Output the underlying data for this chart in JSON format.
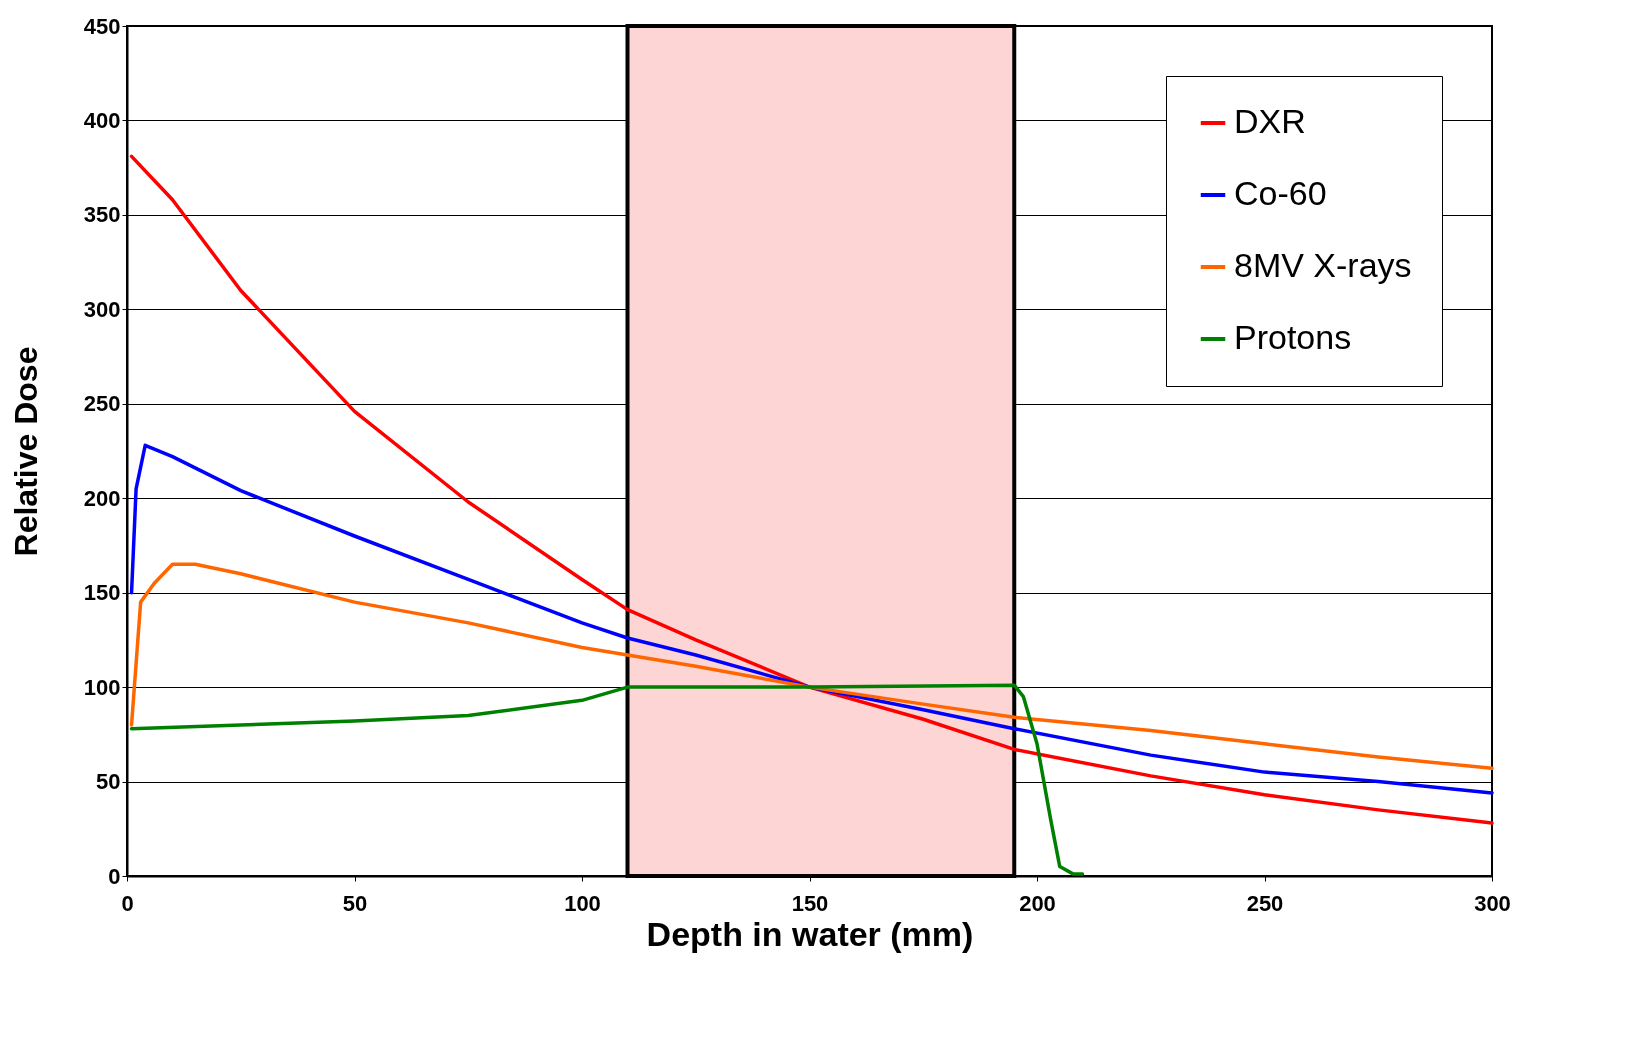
{
  "chart_data": {
    "type": "line",
    "xlabel": "Depth in water (mm)",
    "ylabel": "Relative Dose",
    "xlim": [
      0,
      300
    ],
    "xticks": [
      0,
      50,
      100,
      150,
      200,
      250,
      300
    ],
    "ylim": [
      0,
      450
    ],
    "yticks": [
      0,
      50,
      100,
      150,
      200,
      250,
      300,
      350,
      400,
      450
    ],
    "grid": "y",
    "legend": "top right",
    "line_style": "solid",
    "marker": "none",
    "bands": [
      {
        "axis": "x",
        "from": 110,
        "to": 195,
        "color": "#fdd5d5"
      }
    ],
    "series": [
      {
        "name": "DXR",
        "color": "#ff0000",
        "x": [
          1,
          10,
          25,
          50,
          75,
          100,
          110,
          125,
          150,
          175,
          195,
          225,
          250,
          275,
          300
        ],
        "values": [
          381,
          358,
          310,
          246,
          198,
          157,
          141,
          125,
          100,
          83,
          67,
          53,
          43,
          35,
          28
        ]
      },
      {
        "name": "Co-60",
        "color": "#0000ff",
        "x": [
          1,
          2,
          4,
          10,
          25,
          50,
          75,
          100,
          110,
          125,
          150,
          175,
          195,
          225,
          250,
          275,
          300
        ],
        "values": [
          150,
          205,
          228,
          222,
          204,
          180,
          157,
          134,
          126,
          117,
          100,
          88,
          78,
          64,
          55,
          50,
          44
        ]
      },
      {
        "name": "8MV X-rays",
        "color": "#ff6600",
        "x": [
          1,
          3,
          6,
          10,
          15,
          25,
          50,
          75,
          100,
          110,
          125,
          150,
          175,
          195,
          225,
          250,
          275,
          300
        ],
        "values": [
          80,
          145,
          155,
          165,
          165,
          160,
          145,
          134,
          121,
          117,
          111,
          100,
          91,
          84,
          77,
          70,
          63,
          57
        ]
      },
      {
        "name": "Protons",
        "color": "#008000",
        "x": [
          1,
          25,
          50,
          75,
          100,
          110,
          150,
          195,
          197,
          200,
          203,
          205,
          208,
          210
        ],
        "values": [
          78,
          80,
          82,
          85,
          93,
          100,
          100,
          101,
          95,
          70,
          30,
          5,
          1,
          1
        ]
      }
    ]
  }
}
